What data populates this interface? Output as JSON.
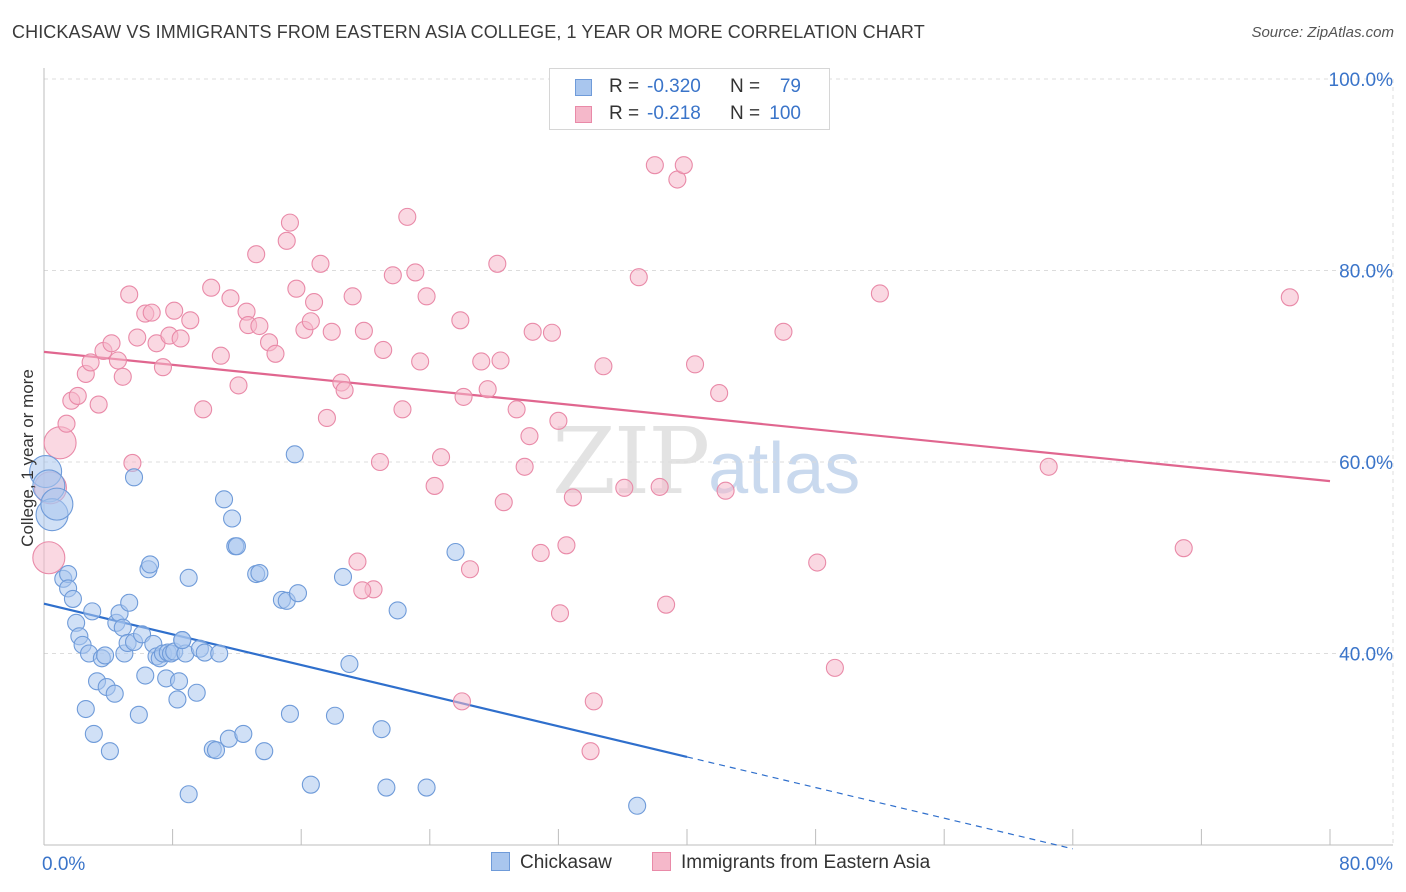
{
  "header": {
    "title": "CHICKASAW VS IMMIGRANTS FROM EASTERN ASIA COLLEGE, 1 YEAR OR MORE CORRELATION CHART",
    "source": "Source: ZipAtlas.com"
  },
  "watermark": {
    "zip": "ZIP",
    "atlas": "atlas"
  },
  "legend": {
    "rows": [
      {
        "r_label": "R =",
        "r_value": "-0.320",
        "n_label": "N =",
        "n_value": "79"
      },
      {
        "r_label": "R =",
        "r_value": "-0.218",
        "n_label": "N =",
        "n_value": "100"
      }
    ]
  },
  "bottom_legend": {
    "series0": "Chickasaw",
    "series1": "Immigrants from Eastern Asia"
  },
  "chart_data": {
    "type": "scatter",
    "ylabel": "College, 1 year or more",
    "xlim": [
      0,
      80
    ],
    "ylim": [
      20,
      100
    ],
    "x_tick_labels": [
      {
        "value": 0,
        "label": "0.0%"
      },
      {
        "value": 80,
        "label": "80.0%"
      }
    ],
    "y_tick_labels": [
      {
        "value": 40,
        "label": "40.0%"
      },
      {
        "value": 60,
        "label": "60.0%"
      },
      {
        "value": 80,
        "label": "80.0%"
      },
      {
        "value": 100,
        "label": "100.0%"
      }
    ],
    "x_minor_ticks": [
      0,
      8,
      16,
      24,
      32,
      40,
      48,
      56,
      64,
      72,
      80
    ],
    "grid": true,
    "colors": {
      "series0_fill": "#a9c6ee",
      "series0_stroke": "#6f9bd9",
      "series0_line": "#2f6fcc",
      "series1_fill": "#f5b8ca",
      "series1_stroke": "#e98aa8",
      "series1_line": "#e0668f",
      "tick_label": "#3a74c9",
      "grid": "#dcdcdc"
    },
    "series": [
      {
        "name": "Chickasaw",
        "trend": {
          "x0": 0,
          "y0": 45.2,
          "x1": 40,
          "y1": 29.2,
          "dash_to_x": 64,
          "dash_to_y": 19.6
        },
        "points": [
          [
            0.1,
            59.0
          ],
          [
            0.3,
            57.5
          ],
          [
            0.5,
            54.5
          ],
          [
            0.8,
            55.6
          ],
          [
            1.2,
            47.8
          ],
          [
            1.5,
            48.3
          ],
          [
            1.5,
            46.8
          ],
          [
            1.8,
            45.7
          ],
          [
            2.0,
            43.2
          ],
          [
            2.2,
            41.8
          ],
          [
            2.4,
            40.9
          ],
          [
            2.6,
            34.2
          ],
          [
            2.8,
            40.0
          ],
          [
            3.0,
            44.4
          ],
          [
            3.1,
            31.6
          ],
          [
            3.3,
            37.1
          ],
          [
            3.6,
            39.5
          ],
          [
            3.8,
            39.8
          ],
          [
            3.9,
            36.5
          ],
          [
            4.1,
            29.8
          ],
          [
            4.4,
            35.8
          ],
          [
            4.5,
            43.2
          ],
          [
            4.7,
            44.2
          ],
          [
            4.9,
            42.7
          ],
          [
            5.0,
            40.0
          ],
          [
            5.2,
            41.1
          ],
          [
            5.3,
            45.3
          ],
          [
            5.6,
            41.2
          ],
          [
            5.9,
            33.6
          ],
          [
            6.1,
            42.0
          ],
          [
            6.3,
            37.7
          ],
          [
            6.5,
            48.8
          ],
          [
            6.6,
            49.3
          ],
          [
            6.8,
            41.0
          ],
          [
            7.0,
            39.7
          ],
          [
            7.2,
            39.5
          ],
          [
            7.4,
            40.0
          ],
          [
            7.6,
            37.4
          ],
          [
            7.7,
            40.1
          ],
          [
            7.9,
            40.0
          ],
          [
            8.1,
            40.2
          ],
          [
            8.3,
            35.2
          ],
          [
            8.4,
            37.1
          ],
          [
            8.6,
            41.4
          ],
          [
            8.8,
            40.0
          ],
          [
            9.0,
            47.9
          ],
          [
            9.5,
            35.9
          ],
          [
            9.7,
            40.5
          ],
          [
            10.0,
            40.1
          ],
          [
            10.5,
            30.0
          ],
          [
            10.7,
            29.9
          ],
          [
            10.9,
            40.0
          ],
          [
            11.2,
            56.1
          ],
          [
            11.5,
            31.1
          ],
          [
            11.7,
            54.1
          ],
          [
            11.9,
            51.2
          ],
          [
            12.0,
            51.2
          ],
          [
            12.4,
            31.6
          ],
          [
            13.2,
            48.3
          ],
          [
            13.4,
            48.4
          ],
          [
            13.7,
            29.8
          ],
          [
            14.8,
            45.6
          ],
          [
            15.1,
            45.5
          ],
          [
            15.3,
            33.7
          ],
          [
            15.6,
            60.8
          ],
          [
            15.8,
            46.3
          ],
          [
            16.6,
            26.3
          ],
          [
            18.1,
            33.5
          ],
          [
            18.6,
            48.0
          ],
          [
            19.0,
            38.9
          ],
          [
            21.0,
            32.1
          ],
          [
            21.3,
            26.0
          ],
          [
            22.0,
            44.5
          ],
          [
            23.8,
            26.0
          ],
          [
            25.6,
            50.6
          ],
          [
            36.9,
            24.1
          ],
          [
            5.6,
            58.4
          ],
          [
            9.0,
            25.3
          ],
          [
            8.6,
            41.4
          ]
        ]
      },
      {
        "name": "Immigrants from Eastern Asia",
        "trend": {
          "x0": 0,
          "y0": 71.5,
          "x1": 80,
          "y1": 58.0
        },
        "points": [
          [
            0.3,
            50.0
          ],
          [
            0.4,
            57.3
          ],
          [
            1.0,
            62.0
          ],
          [
            1.4,
            64.0
          ],
          [
            1.7,
            66.4
          ],
          [
            2.1,
            66.9
          ],
          [
            2.6,
            69.2
          ],
          [
            2.9,
            70.4
          ],
          [
            3.4,
            66.0
          ],
          [
            3.7,
            71.6
          ],
          [
            4.2,
            72.4
          ],
          [
            4.6,
            70.6
          ],
          [
            4.9,
            68.9
          ],
          [
            5.3,
            77.5
          ],
          [
            5.5,
            59.9
          ],
          [
            5.8,
            73.0
          ],
          [
            6.3,
            75.5
          ],
          [
            6.7,
            75.6
          ],
          [
            7.0,
            72.4
          ],
          [
            7.4,
            69.9
          ],
          [
            7.8,
            73.2
          ],
          [
            8.1,
            75.8
          ],
          [
            8.5,
            72.9
          ],
          [
            9.1,
            74.8
          ],
          [
            9.9,
            65.5
          ],
          [
            10.4,
            78.2
          ],
          [
            11.0,
            71.1
          ],
          [
            11.6,
            77.1
          ],
          [
            12.1,
            68.0
          ],
          [
            12.6,
            75.7
          ],
          [
            12.7,
            74.3
          ],
          [
            13.2,
            81.7
          ],
          [
            13.4,
            74.2
          ],
          [
            14.0,
            72.5
          ],
          [
            14.4,
            71.3
          ],
          [
            15.1,
            83.1
          ],
          [
            15.3,
            85.0
          ],
          [
            15.7,
            78.1
          ],
          [
            16.2,
            73.8
          ],
          [
            16.6,
            74.7
          ],
          [
            16.8,
            76.7
          ],
          [
            17.2,
            80.7
          ],
          [
            17.6,
            64.6
          ],
          [
            17.9,
            73.6
          ],
          [
            18.5,
            68.3
          ],
          [
            18.7,
            67.5
          ],
          [
            19.2,
            77.3
          ],
          [
            19.5,
            49.6
          ],
          [
            19.9,
            73.7
          ],
          [
            20.5,
            46.7
          ],
          [
            20.9,
            60.0
          ],
          [
            21.1,
            71.7
          ],
          [
            21.7,
            79.5
          ],
          [
            22.3,
            65.5
          ],
          [
            22.6,
            85.6
          ],
          [
            23.1,
            79.8
          ],
          [
            23.4,
            70.5
          ],
          [
            23.8,
            77.3
          ],
          [
            24.3,
            57.5
          ],
          [
            24.7,
            60.5
          ],
          [
            25.9,
            74.8
          ],
          [
            26.1,
            66.8
          ],
          [
            26.5,
            48.8
          ],
          [
            27.2,
            70.5
          ],
          [
            27.6,
            67.6
          ],
          [
            28.2,
            80.7
          ],
          [
            28.4,
            70.6
          ],
          [
            28.6,
            55.8
          ],
          [
            29.4,
            65.5
          ],
          [
            29.9,
            59.5
          ],
          [
            30.2,
            62.7
          ],
          [
            30.4,
            73.6
          ],
          [
            30.9,
            50.5
          ],
          [
            31.6,
            73.5
          ],
          [
            32.0,
            64.3
          ],
          [
            32.5,
            51.3
          ],
          [
            32.9,
            56.3
          ],
          [
            32.1,
            44.2
          ],
          [
            34.2,
            35.0
          ],
          [
            34.8,
            70.0
          ],
          [
            36.1,
            57.3
          ],
          [
            37.0,
            79.3
          ],
          [
            38.0,
            91.0
          ],
          [
            38.3,
            57.4
          ],
          [
            38.7,
            45.1
          ],
          [
            39.4,
            89.5
          ],
          [
            39.8,
            91.0
          ],
          [
            40.5,
            70.2
          ],
          [
            42.0,
            67.2
          ],
          [
            42.4,
            57.0
          ],
          [
            46.0,
            73.6
          ],
          [
            48.1,
            49.5
          ],
          [
            49.2,
            38.5
          ],
          [
            52.0,
            77.6
          ],
          [
            62.5,
            59.5
          ],
          [
            70.9,
            51.0
          ],
          [
            77.5,
            77.2
          ],
          [
            34.0,
            29.8
          ],
          [
            19.8,
            46.6
          ],
          [
            26.0,
            35.0
          ]
        ]
      }
    ]
  }
}
